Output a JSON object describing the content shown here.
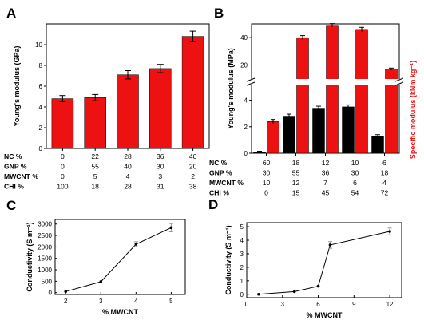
{
  "chart_data": [
    {
      "panel": "A",
      "type": "bar",
      "ylabel": "Young's modulus (GPa)",
      "ylim": [
        0,
        12
      ],
      "yticks": [
        0,
        2,
        4,
        6,
        8,
        10
      ],
      "values": [
        4.8,
        4.9,
        7.1,
        7.7,
        10.8
      ],
      "errors": [
        0.3,
        0.3,
        0.4,
        0.4,
        0.5
      ],
      "color": "#ee1111",
      "table": [
        {
          "label": "NC %",
          "values": [
            "0",
            "22",
            "28",
            "36",
            "40"
          ]
        },
        {
          "label": "GNP %",
          "values": [
            "0",
            "55",
            "40",
            "30",
            "20"
          ]
        },
        {
          "label": "MWCNT %",
          "values": [
            "0",
            "5",
            "4",
            "3",
            "2"
          ]
        },
        {
          "label": "CHI %",
          "values": [
            "100",
            "18",
            "28",
            "31",
            "38"
          ]
        }
      ]
    },
    {
      "panel": "B",
      "type": "bar",
      "ylabel": "Young's modulus (MPa)",
      "y2label": "Specific modulus (kNm kg⁻¹)",
      "broken_axis": true,
      "ylim_lower": [
        0,
        5
      ],
      "ylim_upper": [
        11,
        50
      ],
      "yticks_lower": [
        0,
        2,
        4
      ],
      "yticks_upper": [
        20,
        40
      ],
      "series": [
        {
          "name": "",
          "color": "#000000",
          "values": [
            0.1,
            2.8,
            3.4,
            3.5,
            1.3
          ],
          "errors": [
            0.05,
            0.15,
            0.15,
            0.15,
            0.1
          ]
        },
        {
          "name": "",
          "color": "#ee1111",
          "values": [
            2.4,
            40,
            49,
            46,
            17
          ],
          "errors": [
            0.15,
            1.5,
            1.2,
            1.5,
            0.8
          ]
        }
      ],
      "table": [
        {
          "label": "NC %",
          "values": [
            "60",
            "18",
            "12",
            "10",
            "6"
          ]
        },
        {
          "label": "GNP %",
          "values": [
            "30",
            "55",
            "36",
            "30",
            "18"
          ]
        },
        {
          "label": "MWCNT %",
          "values": [
            "10",
            "12",
            "7",
            "6",
            "4"
          ]
        },
        {
          "label": "CHI %",
          "values": [
            "0",
            "15",
            "45",
            "54",
            "72"
          ]
        }
      ]
    },
    {
      "panel": "C",
      "type": "line",
      "xlabel": "% MWCNT",
      "ylabel": "Conductivity (S m⁻¹)",
      "xlim": [
        1.7,
        5.4
      ],
      "ylim": [
        -80,
        3200
      ],
      "xticks": [
        2,
        3,
        4,
        5
      ],
      "yticks": [
        0,
        500,
        1000,
        1500,
        2000,
        2500,
        3000
      ],
      "x": [
        2,
        3,
        4,
        5
      ],
      "y": [
        50,
        480,
        2120,
        2840
      ],
      "errors": [
        0,
        0,
        110,
        180
      ]
    },
    {
      "panel": "D",
      "type": "line",
      "xlabel": "% MWCNT",
      "ylabel": "Conductivity (S m⁻¹)",
      "xlim": [
        0,
        13
      ],
      "ylim": [
        -0.25,
        5.3
      ],
      "xticks": [
        0,
        3,
        6,
        9,
        12
      ],
      "yticks": [
        0,
        1,
        2,
        3,
        4,
        5
      ],
      "x": [
        1,
        4,
        6,
        7,
        12
      ],
      "y": [
        0.0,
        0.2,
        0.6,
        3.65,
        4.65
      ],
      "errors": [
        0,
        0,
        0,
        0.25,
        0.25
      ]
    }
  ]
}
